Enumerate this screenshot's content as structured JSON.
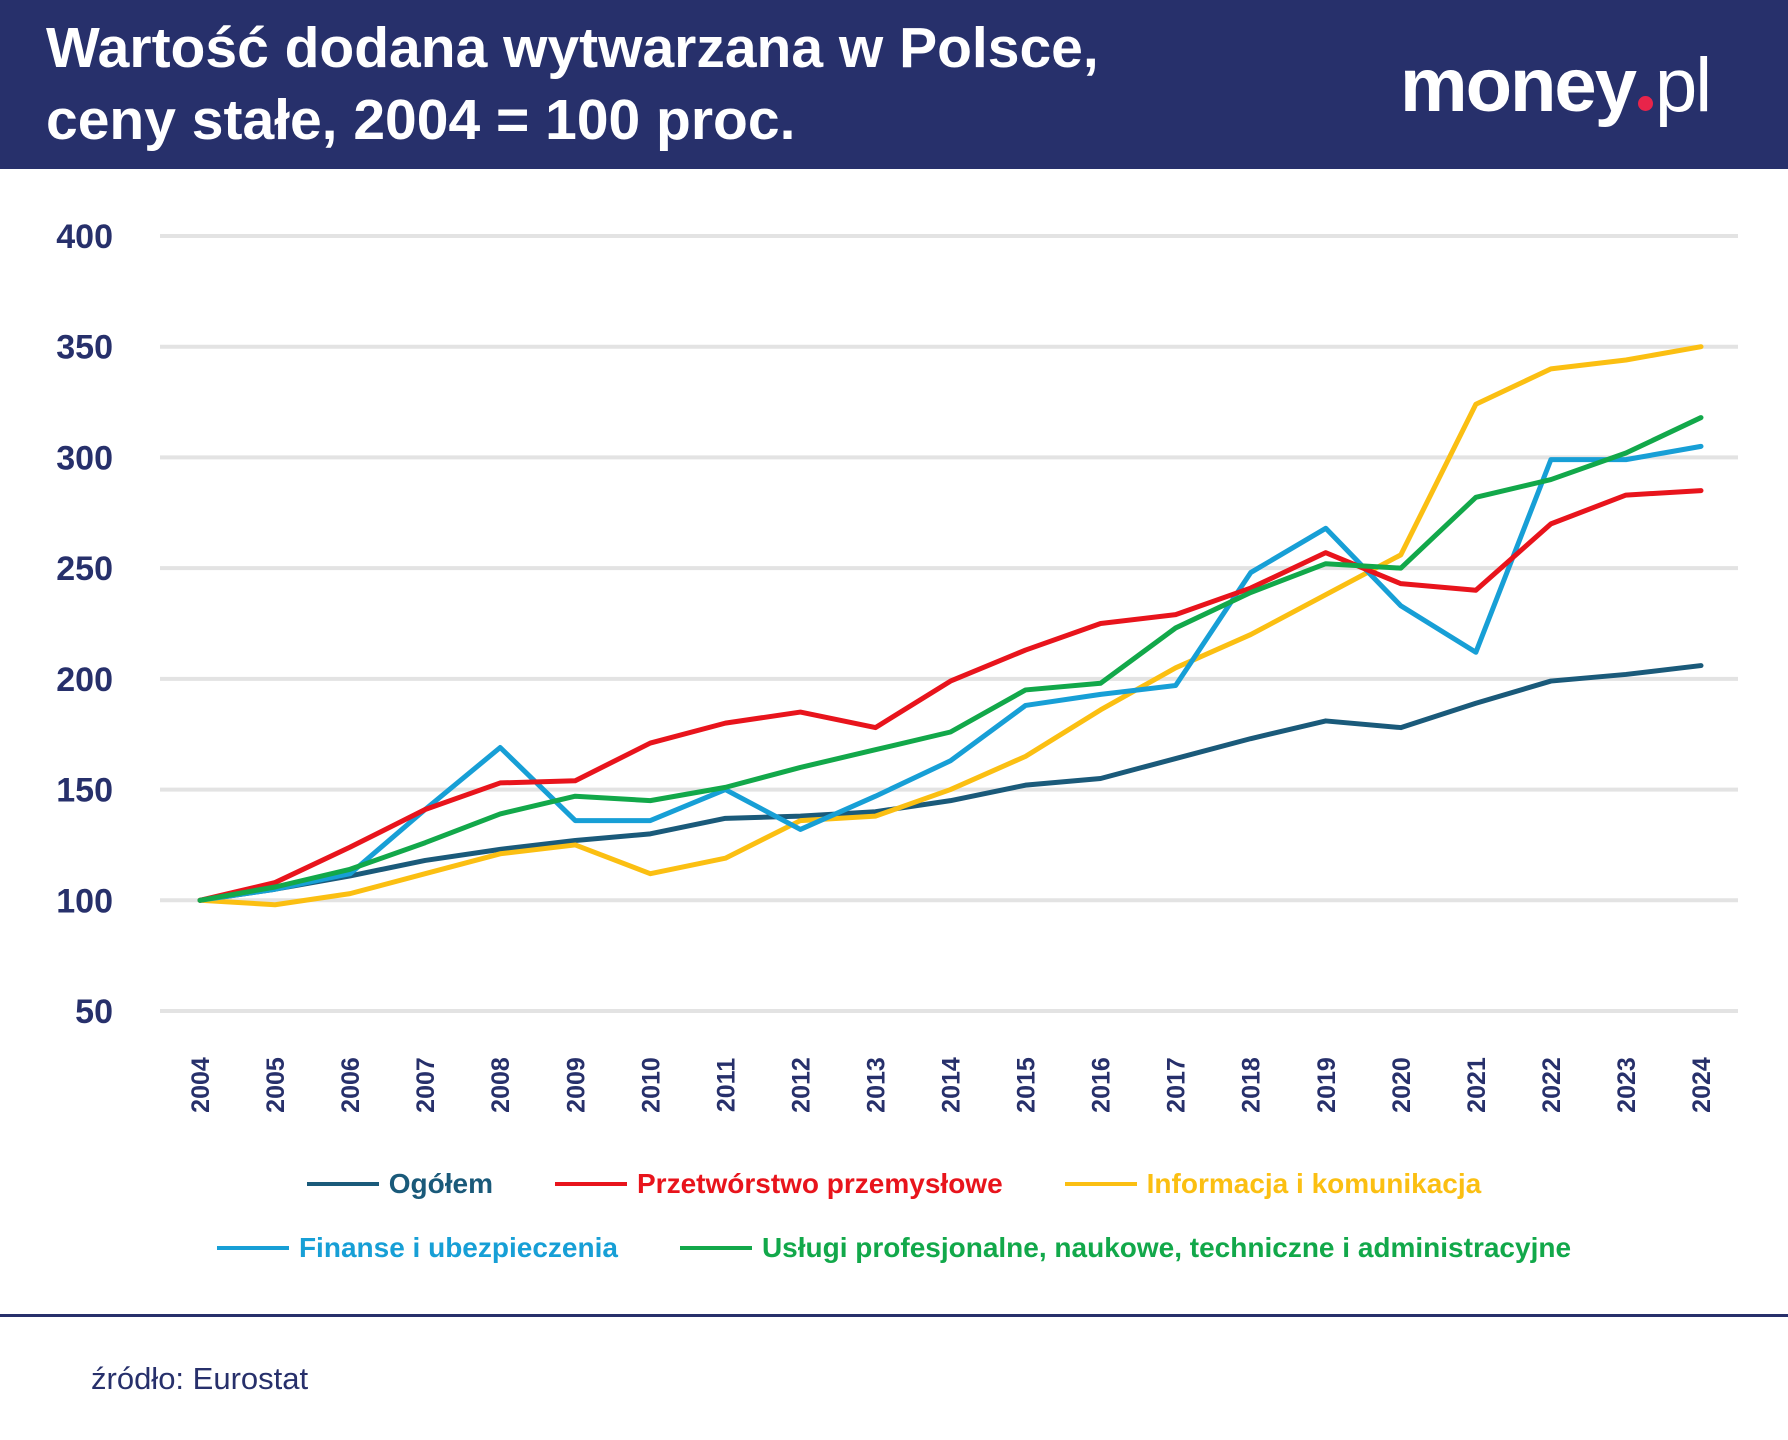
{
  "header": {
    "title_line1": "Wartość dodana wytwarzana w Polsce,",
    "title_line2": "ceny stałe, 2004 = 100 proc.",
    "logo": "money.pl"
  },
  "chart_data": {
    "type": "line",
    "title": "Wartość dodana wytwarzana w Polsce, ceny stałe, 2004 = 100 proc.",
    "xlabel": "",
    "ylabel": "",
    "ylim": [
      50,
      400
    ],
    "yticks": [
      400,
      350,
      300,
      250,
      200,
      150,
      100,
      50
    ],
    "grid": true,
    "legend_position": "bottom",
    "categories": [
      "2004",
      "2005",
      "2006",
      "2007",
      "2008",
      "2009",
      "2010",
      "2011",
      "2012",
      "2013",
      "2014",
      "2015",
      "2016",
      "2017",
      "2018",
      "2019",
      "2020",
      "2021",
      "2022",
      "2023",
      "2024"
    ],
    "series": [
      {
        "name": "Ogółem",
        "color": "#1a5a7a",
        "values": [
          100,
          105,
          111,
          118,
          123,
          127,
          130,
          137,
          138,
          140,
          145,
          152,
          155,
          164,
          173,
          181,
          178,
          189,
          199,
          202,
          206
        ]
      },
      {
        "name": "Przetwórstwo przemysłowe",
        "color": "#e8141c",
        "values": [
          100,
          108,
          124,
          141,
          153,
          154,
          171,
          180,
          185,
          178,
          199,
          213,
          225,
          229,
          241,
          257,
          243,
          240,
          270,
          283,
          285
        ]
      },
      {
        "name": "Informacja i komunikacja",
        "color": "#fbbf12",
        "values": [
          100,
          98,
          103,
          112,
          121,
          125,
          112,
          119,
          136,
          138,
          150,
          165,
          186,
          205,
          220,
          238,
          256,
          324,
          340,
          344,
          350
        ]
      },
      {
        "name": "Finanse i ubezpieczenia",
        "color": "#179fd6",
        "values": [
          100,
          105,
          112,
          141,
          169,
          136,
          136,
          150,
          132,
          147,
          163,
          188,
          193,
          197,
          248,
          268,
          233,
          212,
          299,
          299,
          305
        ]
      },
      {
        "name": "Usługi profesjonalne, naukowe, techniczne i administracyjne",
        "color": "#12a84a",
        "values": [
          100,
          106,
          114,
          126,
          139,
          147,
          145,
          151,
          160,
          168,
          176,
          195,
          198,
          223,
          239,
          252,
          250,
          282,
          290,
          302,
          318
        ]
      }
    ]
  },
  "source": "źródło: Eurostat"
}
